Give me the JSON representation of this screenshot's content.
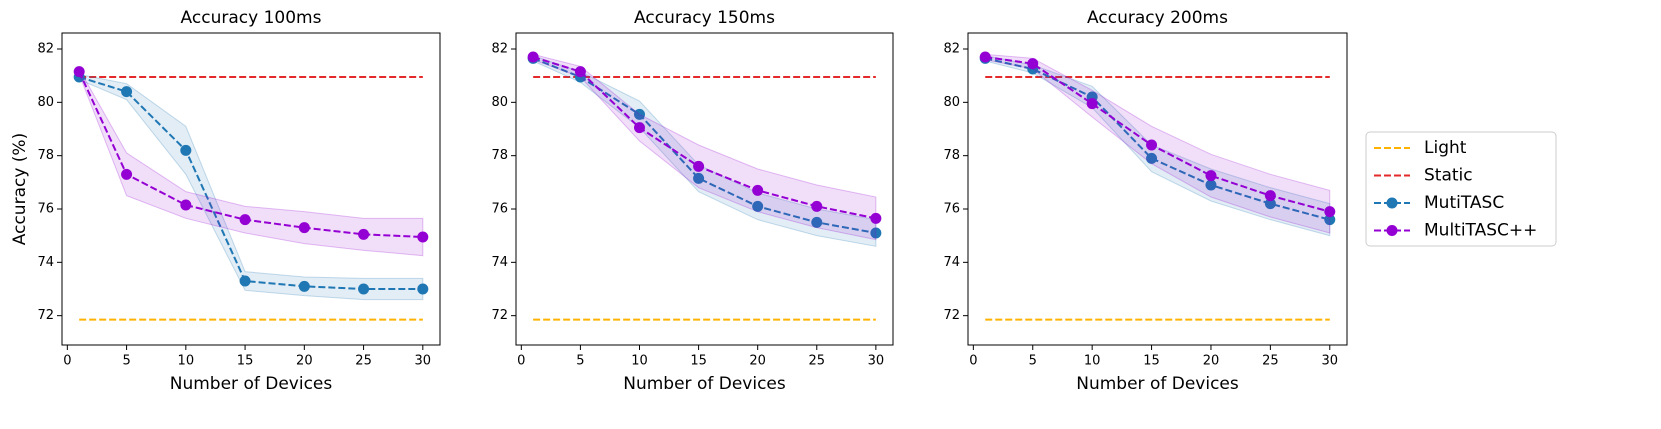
{
  "chart_data": [
    {
      "type": "line",
      "title": "Accuracy 100ms",
      "xlabel": "Number of Devices",
      "ylabel": "Accuracy (%)",
      "x": [
        1,
        5,
        10,
        15,
        20,
        25,
        30
      ],
      "xlim": [
        -0.45,
        31.45
      ],
      "ylim": [
        70.9,
        82.6
      ],
      "xticks": [
        0,
        5,
        10,
        15,
        20,
        25,
        30
      ],
      "yticks": [
        72,
        74,
        76,
        78,
        80,
        82
      ],
      "legend": "outside right",
      "series": [
        {
          "name": "Light",
          "color": "#ffb300",
          "linestyle": "dashed",
          "marker": false,
          "values": [
            71.85,
            71.85,
            71.85,
            71.85,
            71.85,
            71.85,
            71.85
          ]
        },
        {
          "name": "Static",
          "color": "#e3292a",
          "linestyle": "dashed",
          "marker": false,
          "values": [
            80.95,
            80.95,
            80.95,
            80.95,
            80.95,
            80.95,
            80.95
          ]
        },
        {
          "name": "MutiTASC",
          "color": "#1f77b4",
          "linestyle": "dashed",
          "marker": true,
          "values": [
            80.95,
            80.4,
            78.2,
            73.3,
            73.1,
            73.0,
            73.0
          ],
          "errors": [
            0.1,
            0.3,
            0.9,
            0.35,
            0.35,
            0.4,
            0.4
          ]
        },
        {
          "name": "MultiTASC++",
          "color": "#9400d3",
          "linestyle": "dashed",
          "marker": true,
          "values": [
            81.15,
            77.3,
            76.15,
            75.6,
            75.3,
            75.05,
            74.95
          ],
          "errors": [
            0.1,
            0.8,
            0.5,
            0.5,
            0.6,
            0.6,
            0.7
          ]
        }
      ]
    },
    {
      "type": "line",
      "title": "Accuracy 150ms",
      "xlabel": "Number of Devices",
      "x": [
        1,
        5,
        10,
        15,
        20,
        25,
        30
      ],
      "xlim": [
        -0.45,
        31.45
      ],
      "ylim": [
        70.9,
        82.6
      ],
      "xticks": [
        0,
        5,
        10,
        15,
        20,
        25,
        30
      ],
      "yticks": [
        72,
        74,
        76,
        78,
        80,
        82
      ],
      "series": [
        {
          "color": "#ffb300",
          "linestyle": "dashed",
          "marker": false,
          "values": [
            71.85,
            71.85,
            71.85,
            71.85,
            71.85,
            71.85,
            71.85
          ]
        },
        {
          "color": "#e3292a",
          "linestyle": "dashed",
          "marker": false,
          "values": [
            80.95,
            80.95,
            80.95,
            80.95,
            80.95,
            80.95,
            80.95
          ]
        },
        {
          "color": "#1f77b4",
          "linestyle": "dashed",
          "marker": true,
          "values": [
            81.65,
            80.95,
            79.55,
            77.15,
            76.1,
            75.5,
            75.1
          ],
          "errors": [
            0.1,
            0.2,
            0.5,
            0.5,
            0.5,
            0.5,
            0.5
          ]
        },
        {
          "color": "#9400d3",
          "linestyle": "dashed",
          "marker": true,
          "values": [
            81.7,
            81.15,
            79.05,
            77.6,
            76.7,
            76.1,
            75.65
          ],
          "errors": [
            0.1,
            0.2,
            0.5,
            0.8,
            0.8,
            0.8,
            0.8
          ]
        }
      ]
    },
    {
      "type": "line",
      "title": "Accuracy 200ms",
      "xlabel": "Number of Devices",
      "x": [
        1,
        5,
        10,
        15,
        20,
        25,
        30
      ],
      "xlim": [
        -0.45,
        31.45
      ],
      "ylim": [
        70.9,
        82.6
      ],
      "xticks": [
        0,
        5,
        10,
        15,
        20,
        25,
        30
      ],
      "yticks": [
        72,
        74,
        76,
        78,
        80,
        82
      ],
      "series": [
        {
          "color": "#ffb300",
          "linestyle": "dashed",
          "marker": false,
          "values": [
            71.85,
            71.85,
            71.85,
            71.85,
            71.85,
            71.85,
            71.85
          ]
        },
        {
          "color": "#e3292a",
          "linestyle": "dashed",
          "marker": false,
          "values": [
            80.95,
            80.95,
            80.95,
            80.95,
            80.95,
            80.95,
            80.95
          ]
        },
        {
          "color": "#1f77b4",
          "linestyle": "dashed",
          "marker": true,
          "values": [
            81.65,
            81.25,
            80.2,
            77.9,
            76.9,
            76.2,
            75.6
          ],
          "errors": [
            0.1,
            0.15,
            0.4,
            0.5,
            0.6,
            0.6,
            0.6
          ]
        },
        {
          "color": "#9400d3",
          "linestyle": "dashed",
          "marker": true,
          "values": [
            81.7,
            81.45,
            79.95,
            78.4,
            77.25,
            76.5,
            75.9
          ],
          "errors": [
            0.1,
            0.2,
            0.5,
            0.7,
            0.8,
            0.8,
            0.8
          ]
        }
      ]
    }
  ]
}
